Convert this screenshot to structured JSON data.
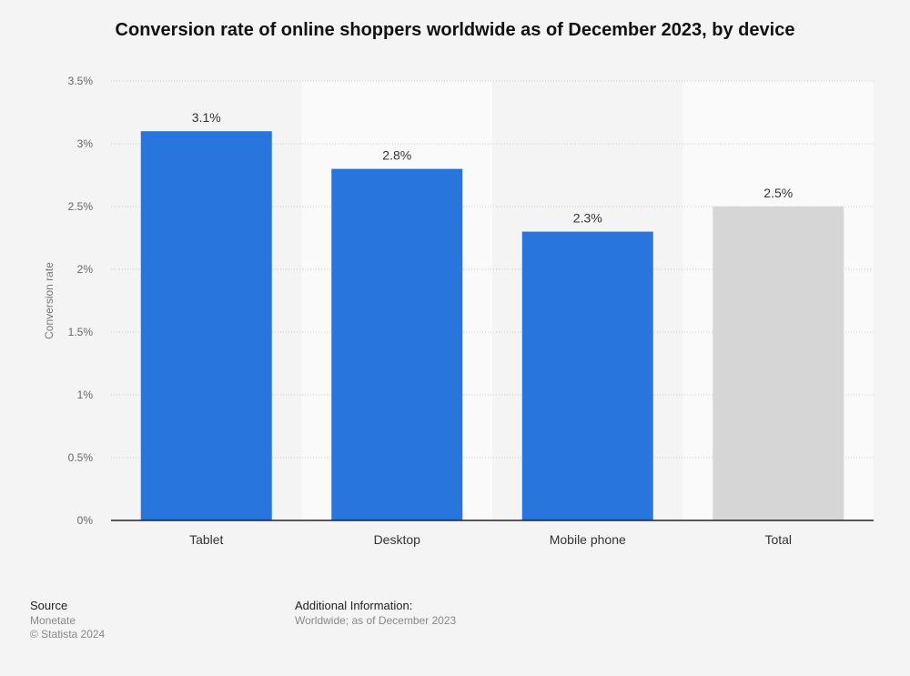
{
  "chart_data": {
    "type": "bar",
    "title": "Conversion rate of online shoppers worldwide as of December 2023, by device",
    "categories": [
      "Tablet",
      "Desktop",
      "Mobile phone",
      "Total"
    ],
    "values": [
      3.1,
      2.8,
      2.3,
      2.5
    ],
    "value_labels": [
      "3.1%",
      "2.8%",
      "2.3%",
      "2.5%"
    ],
    "bar_colors": [
      "#2876dd",
      "#2876dd",
      "#2876dd",
      "#d6d6d6"
    ],
    "xlabel": "",
    "ylabel": "Conversion rate",
    "ylim": [
      0,
      3.5
    ],
    "yticks": [
      0,
      0.5,
      1,
      1.5,
      2,
      2.5,
      3,
      3.5
    ],
    "ytick_labels": [
      "0%",
      "0.5%",
      "1%",
      "1.5%",
      "2%",
      "2.5%",
      "3%",
      "3.5%"
    ],
    "grid": true
  },
  "footer": {
    "source_heading": "Source",
    "source_name": "Monetate",
    "copyright": "© Statista 2024",
    "info_heading": "Additional Information:",
    "info_text": "Worldwide; as of December 2023"
  },
  "colors": {
    "background": "#f4f4f4",
    "band_alt": "#fafafa",
    "accent": "#2876dd",
    "total": "#d6d6d6"
  }
}
